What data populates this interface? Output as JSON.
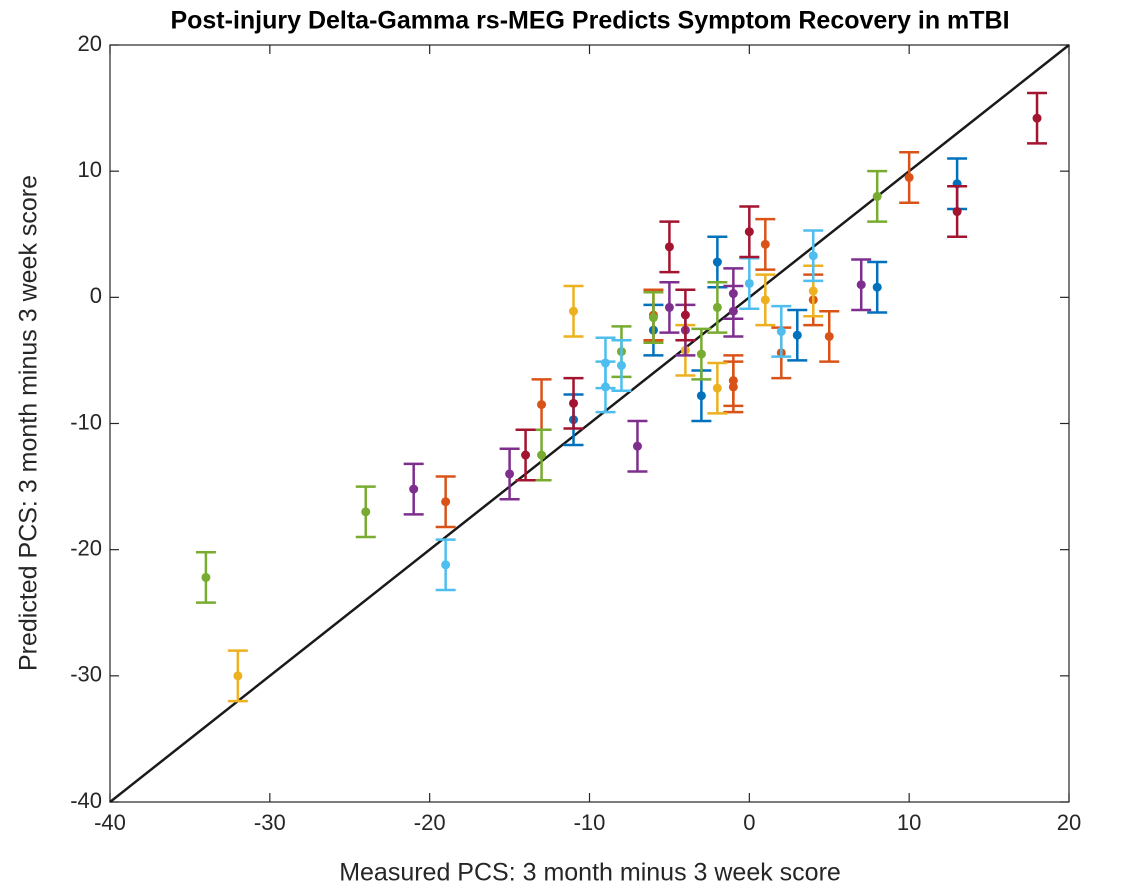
{
  "chart_data": {
    "type": "scatter",
    "title": "Post-injury Delta-Gamma rs-MEG Predicts Symptom Recovery in mTBI",
    "x_label": "Measured PCS: 3 month minus 3 week score",
    "y_label": "Predicted PCS: 3 month minus 3 week score",
    "xlim": [
      -40,
      20
    ],
    "ylim": [
      -40,
      20
    ],
    "xticks": [
      -40,
      -30,
      -20,
      -10,
      0,
      10,
      20
    ],
    "yticks": [
      -40,
      -30,
      -20,
      -10,
      0,
      10,
      20
    ],
    "series": [
      {
        "color": "#0072BD",
        "x": [
          13,
          8,
          -2,
          -6,
          3,
          -3,
          -11
        ],
        "values": [
          9,
          0.8,
          2.8,
          -2.6,
          -3,
          -7.8,
          -9.7
        ],
        "errors": [
          2,
          2,
          2,
          2,
          2,
          2,
          2
        ]
      },
      {
        "color": "#D95319",
        "x": [
          10,
          1,
          4,
          2,
          5,
          -1,
          -13,
          -19,
          -6,
          -1
        ],
        "values": [
          9.5,
          4.2,
          -0.2,
          -4.4,
          -3.1,
          -7.1,
          -8.5,
          -16.2,
          -1.4,
          -6.6
        ],
        "errors": [
          2,
          2,
          2,
          2,
          2,
          2,
          2,
          2,
          2,
          2
        ]
      },
      {
        "color": "#EDB120",
        "x": [
          4,
          1,
          -11,
          -4,
          -2,
          -32
        ],
        "values": [
          0.5,
          -0.2,
          -1.1,
          -4.2,
          -7.2,
          -30
        ],
        "errors": [
          2,
          2,
          2,
          2,
          2,
          2
        ]
      },
      {
        "color": "#7E2F8E",
        "x": [
          7,
          -1,
          -5,
          -4,
          -1,
          -7,
          -15,
          -21
        ],
        "values": [
          1,
          0.3,
          -0.8,
          -2.6,
          -1.1,
          -11.8,
          -14,
          -15.2
        ],
        "errors": [
          2,
          2,
          2,
          2,
          2,
          2,
          2,
          2
        ]
      },
      {
        "color": "#77AC30",
        "x": [
          8,
          -2,
          -6,
          -3,
          -8,
          -13,
          -24,
          -34
        ],
        "values": [
          8,
          -0.8,
          -1.6,
          -4.5,
          -4.3,
          -12.5,
          -17,
          -22.2
        ],
        "errors": [
          2,
          2,
          2,
          2,
          2,
          2,
          2,
          2
        ]
      },
      {
        "color": "#4DBEEE",
        "x": [
          4,
          0,
          2,
          -9,
          -9,
          -8,
          -19
        ],
        "values": [
          3.3,
          1.1,
          -2.7,
          -5.2,
          -7.1,
          -5.4,
          -21.2
        ],
        "errors": [
          2,
          2,
          2,
          2,
          2,
          2,
          2
        ]
      },
      {
        "color": "#A2142F",
        "x": [
          18,
          13,
          -5,
          0,
          -4,
          -11,
          -14
        ],
        "values": [
          14.2,
          6.8,
          4,
          5.2,
          -1.4,
          -8.4,
          -12.5
        ],
        "errors": [
          2,
          2,
          2,
          2,
          2,
          2,
          2
        ]
      }
    ]
  }
}
